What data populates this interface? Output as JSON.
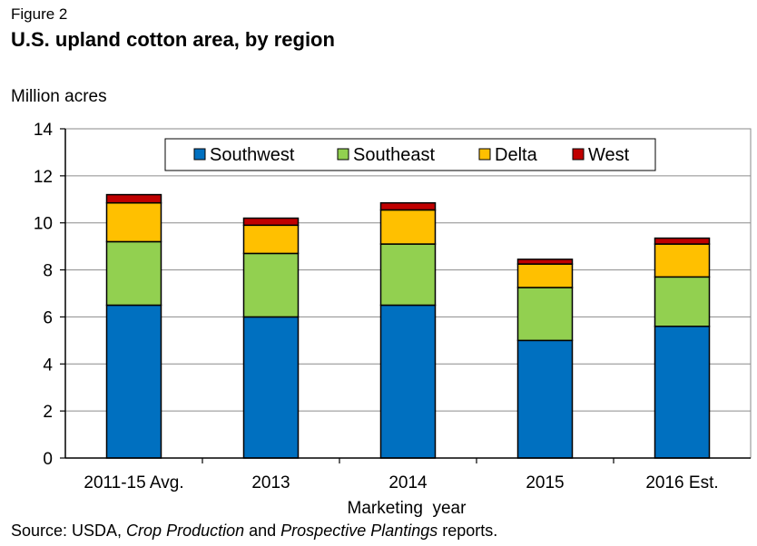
{
  "figure_label": "Figure 2",
  "title": "U.S. upland cotton area, by region",
  "source": {
    "prefix": "Source: USDA, ",
    "italic1": "Crop Production",
    "middle": " and ",
    "italic2": "Prospective Plantings",
    "suffix": " reports."
  },
  "chart_data": {
    "type": "bar",
    "stacked": true,
    "title": "U.S. upland cotton area, by region",
    "ylabel": "Million acres",
    "xlabel": "Marketing  year",
    "ylim": [
      0,
      14
    ],
    "yticks": [
      0,
      2,
      4,
      6,
      8,
      10,
      12,
      14
    ],
    "grid": true,
    "legend_position": "top",
    "categories": [
      "2011-15 Avg.",
      "2013",
      "2014",
      "2015",
      "2016 Est."
    ],
    "series": [
      {
        "name": "Southwest",
        "color": "#0070C0",
        "values": [
          6.5,
          6.0,
          6.5,
          5.0,
          5.6
        ]
      },
      {
        "name": "Southeast",
        "color": "#92D050",
        "values": [
          2.7,
          2.7,
          2.6,
          2.25,
          2.1
        ]
      },
      {
        "name": "Delta",
        "color": "#FFC000",
        "values": [
          1.65,
          1.2,
          1.45,
          1.0,
          1.4
        ]
      },
      {
        "name": "West",
        "color": "#C00000",
        "values": [
          0.35,
          0.3,
          0.3,
          0.2,
          0.25
        ]
      }
    ]
  }
}
